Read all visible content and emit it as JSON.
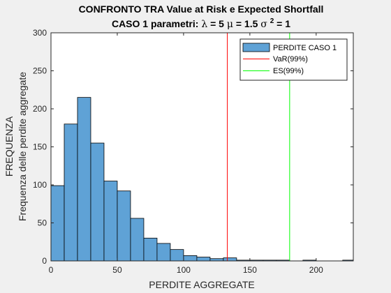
{
  "chart_data": {
    "type": "bar",
    "title": "CONFRONTO TRA Value at Risk e Expected Shortfall",
    "subtitle": {
      "prefix": "CASO 1 parametri: ",
      "lambda_sym": "λ",
      "lambda_val": " = 5 ",
      "mu_sym": "μ",
      "mu_val": " = 1.5 ",
      "sigma_sym": "σ",
      "sigma_exp": "2",
      "sigma_val": " = 1"
    },
    "xlabel": "PERDITE AGGREGATE",
    "ylabel_lines": [
      "FREQUENZA",
      "Frequenza delle perdite aggregate"
    ],
    "xlim": [
      0,
      228
    ],
    "ylim": [
      0,
      300
    ],
    "xticks": [
      0,
      50,
      100,
      150,
      200
    ],
    "yticks": [
      0,
      50,
      100,
      150,
      200,
      250,
      300
    ],
    "bins": [
      {
        "x0": 0,
        "x1": 10,
        "count": 99
      },
      {
        "x0": 10,
        "x1": 20,
        "count": 180
      },
      {
        "x0": 20,
        "x1": 30,
        "count": 215
      },
      {
        "x0": 30,
        "x1": 40,
        "count": 155
      },
      {
        "x0": 40,
        "x1": 50,
        "count": 105
      },
      {
        "x0": 50,
        "x1": 60,
        "count": 92
      },
      {
        "x0": 60,
        "x1": 70,
        "count": 56
      },
      {
        "x0": 70,
        "x1": 80,
        "count": 30
      },
      {
        "x0": 80,
        "x1": 90,
        "count": 23
      },
      {
        "x0": 90,
        "x1": 100,
        "count": 15
      },
      {
        "x0": 100,
        "x1": 110,
        "count": 7
      },
      {
        "x0": 110,
        "x1": 120,
        "count": 5
      },
      {
        "x0": 120,
        "x1": 130,
        "count": 3
      },
      {
        "x0": 130,
        "x1": 140,
        "count": 4
      },
      {
        "x0": 140,
        "x1": 150,
        "count": 1
      },
      {
        "x0": 150,
        "x1": 160,
        "count": 1
      },
      {
        "x0": 160,
        "x1": 170,
        "count": 1
      },
      {
        "x0": 170,
        "x1": 180,
        "count": 1
      },
      {
        "x0": 180,
        "x1": 190,
        "count": 0
      },
      {
        "x0": 190,
        "x1": 200,
        "count": 1
      },
      {
        "x0": 200,
        "x1": 210,
        "count": 0
      },
      {
        "x0": 210,
        "x1": 220,
        "count": 0
      },
      {
        "x0": 220,
        "x1": 230,
        "count": 1
      }
    ],
    "lines": [
      {
        "name": "VaR(99%)",
        "x": 133,
        "color": "#ff0000"
      },
      {
        "name": "ES(99%)",
        "x": 180,
        "color": "#00ff00"
      }
    ],
    "series_name": "PERDITE CASO 1",
    "bar_color": "#5fa2d6",
    "legend_position": "top-right"
  }
}
